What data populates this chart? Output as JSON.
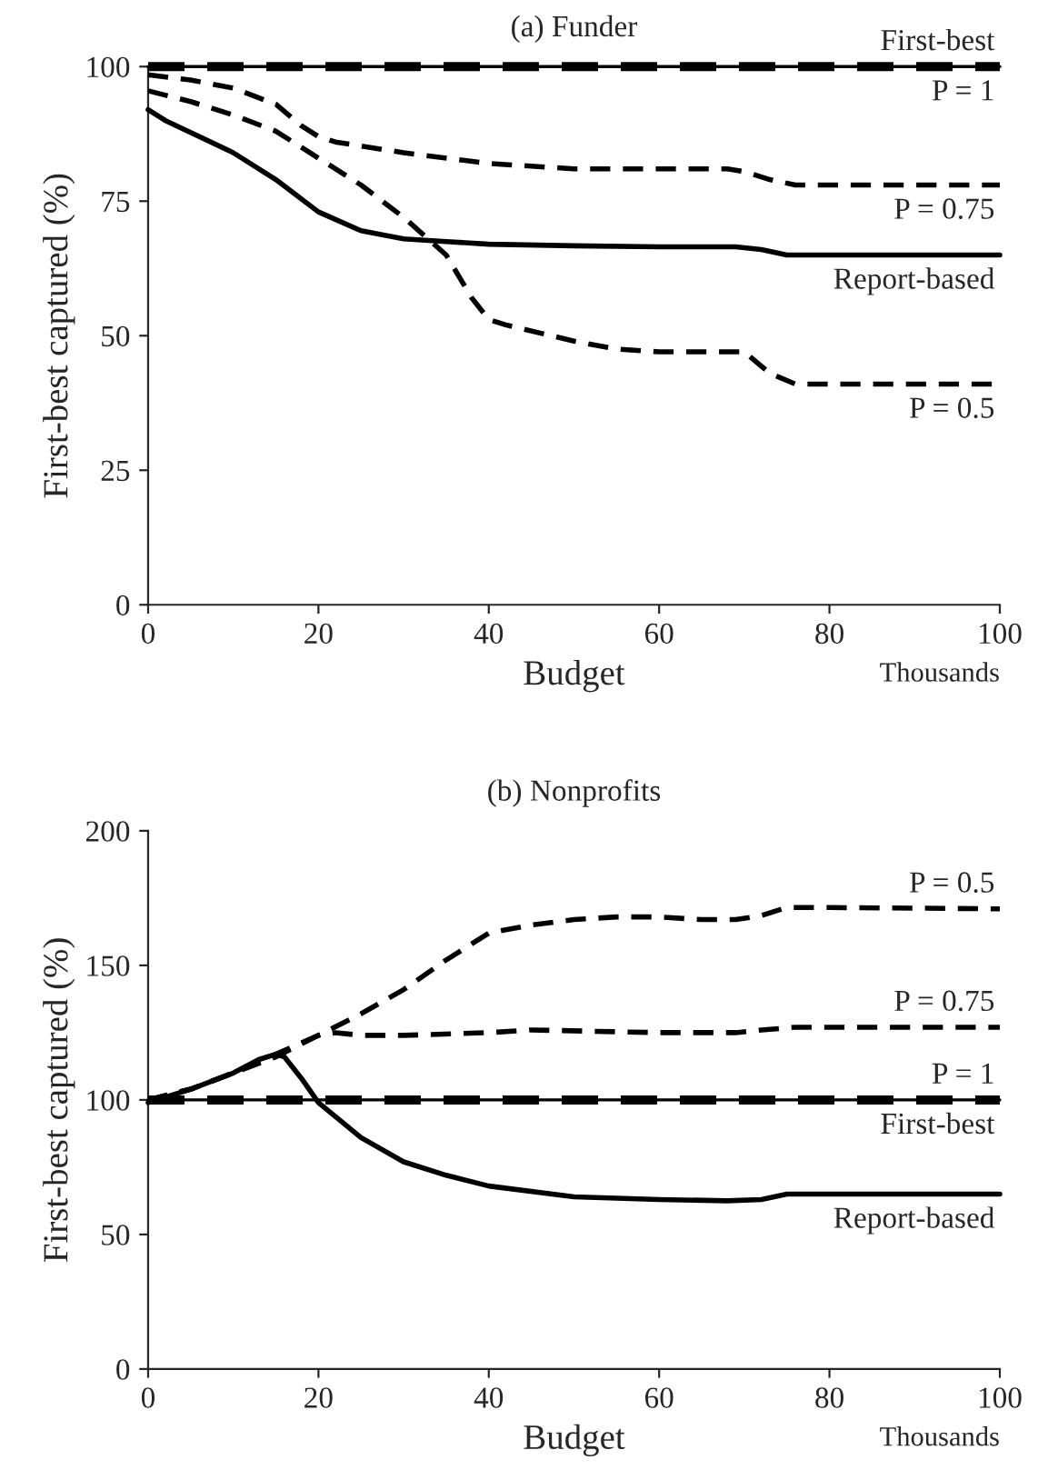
{
  "chart_data": [
    {
      "type": "line",
      "title": "(a) Funder",
      "xlabel": "Budget",
      "ylabel": "First-best captured (%)",
      "annotations": [
        "Thousands"
      ],
      "xlim": [
        0,
        100
      ],
      "xticks": [
        0,
        20,
        40,
        60,
        80,
        100
      ],
      "ylim": [
        0,
        100
      ],
      "yticks": [
        0,
        25,
        50,
        75,
        100
      ],
      "grid": false,
      "legend": false,
      "series": [
        {
          "name": "P = 1",
          "color": "#000000",
          "line_style": "dashed",
          "x": [
            0,
            100
          ],
          "values": [
            100,
            100
          ]
        },
        {
          "name": "First-best",
          "color": "#000000",
          "line_style": "solid",
          "x": [
            0,
            100
          ],
          "values": [
            100,
            100
          ]
        },
        {
          "name": "P = 0.75",
          "color": "#000000",
          "line_style": "dashed",
          "x": [
            0,
            5,
            10,
            15,
            18,
            20,
            22,
            30,
            40,
            50,
            60,
            68,
            70,
            73,
            76,
            80,
            100
          ],
          "values": [
            98.5,
            97.5,
            96,
            93,
            89,
            87,
            86,
            84,
            82,
            81,
            81,
            81,
            80.5,
            79,
            78,
            78,
            78
          ]
        },
        {
          "name": "P = 0.5",
          "color": "#000000",
          "line_style": "dashed",
          "x": [
            0,
            5,
            10,
            15,
            20,
            25,
            30,
            35,
            38,
            40,
            42,
            50,
            55,
            60,
            68,
            70,
            73,
            76,
            80,
            100
          ],
          "values": [
            95.5,
            93.5,
            91,
            88,
            83,
            78,
            72,
            65,
            57,
            53,
            52,
            49,
            47.5,
            47,
            47,
            47,
            43,
            41,
            41,
            41
          ]
        },
        {
          "name": "Report-based",
          "color": "#000000",
          "line_style": "solid",
          "x": [
            0,
            2,
            10,
            15,
            20,
            25,
            30,
            35,
            40,
            50,
            60,
            69,
            72,
            75,
            80,
            100
          ],
          "values": [
            92,
            90,
            84,
            79,
            73,
            69.5,
            68,
            67.5,
            67,
            66.7,
            66.5,
            66.5,
            66,
            65,
            65,
            65
          ]
        }
      ]
    },
    {
      "type": "line",
      "title": "(b) Nonprofits",
      "xlabel": "Budget",
      "ylabel": "First-best captured (%)",
      "annotations": [
        "Thousands"
      ],
      "xlim": [
        0,
        100
      ],
      "xticks": [
        0,
        20,
        40,
        60,
        80,
        100
      ],
      "ylim": [
        0,
        200
      ],
      "yticks": [
        0,
        50,
        100,
        150,
        200
      ],
      "grid": false,
      "legend": false,
      "series": [
        {
          "name": "P = 0.5",
          "color": "#000000",
          "line_style": "dashed",
          "x": [
            0,
            5,
            10,
            15,
            20,
            25,
            30,
            35,
            40,
            45,
            50,
            55,
            60,
            65,
            69,
            72,
            75,
            80,
            100
          ],
          "values": [
            100,
            104,
            110,
            117,
            124,
            132,
            141,
            152,
            162,
            165,
            167,
            168,
            168,
            167,
            167,
            168.5,
            171.5,
            171.5,
            171
          ]
        },
        {
          "name": "P = 0.75",
          "color": "#000000",
          "line_style": "dashed",
          "x": [
            0,
            5,
            10,
            15,
            20,
            22,
            25,
            30,
            40,
            45,
            60,
            69,
            72,
            76,
            100
          ],
          "values": [
            100,
            104,
            110,
            116,
            124,
            125,
            124,
            124,
            125,
            126,
            125,
            125,
            126,
            127,
            127
          ]
        },
        {
          "name": "P = 1",
          "color": "#000000",
          "line_style": "dashed",
          "x": [
            0,
            100
          ],
          "values": [
            100,
            100
          ]
        },
        {
          "name": "First-best",
          "color": "#000000",
          "line_style": "solid",
          "x": [
            0,
            100
          ],
          "values": [
            100,
            100
          ]
        },
        {
          "name": "Report-based",
          "color": "#000000",
          "line_style": "solid",
          "x": [
            0,
            5,
            10,
            13,
            15,
            16,
            18,
            20,
            25,
            30,
            35,
            40,
            50,
            60,
            68,
            72,
            75,
            80,
            100
          ],
          "values": [
            99,
            104,
            110,
            115,
            117,
            116,
            108,
            99,
            86,
            77,
            72,
            68,
            64,
            63,
            62.5,
            63,
            65,
            65,
            65
          ]
        }
      ]
    }
  ]
}
